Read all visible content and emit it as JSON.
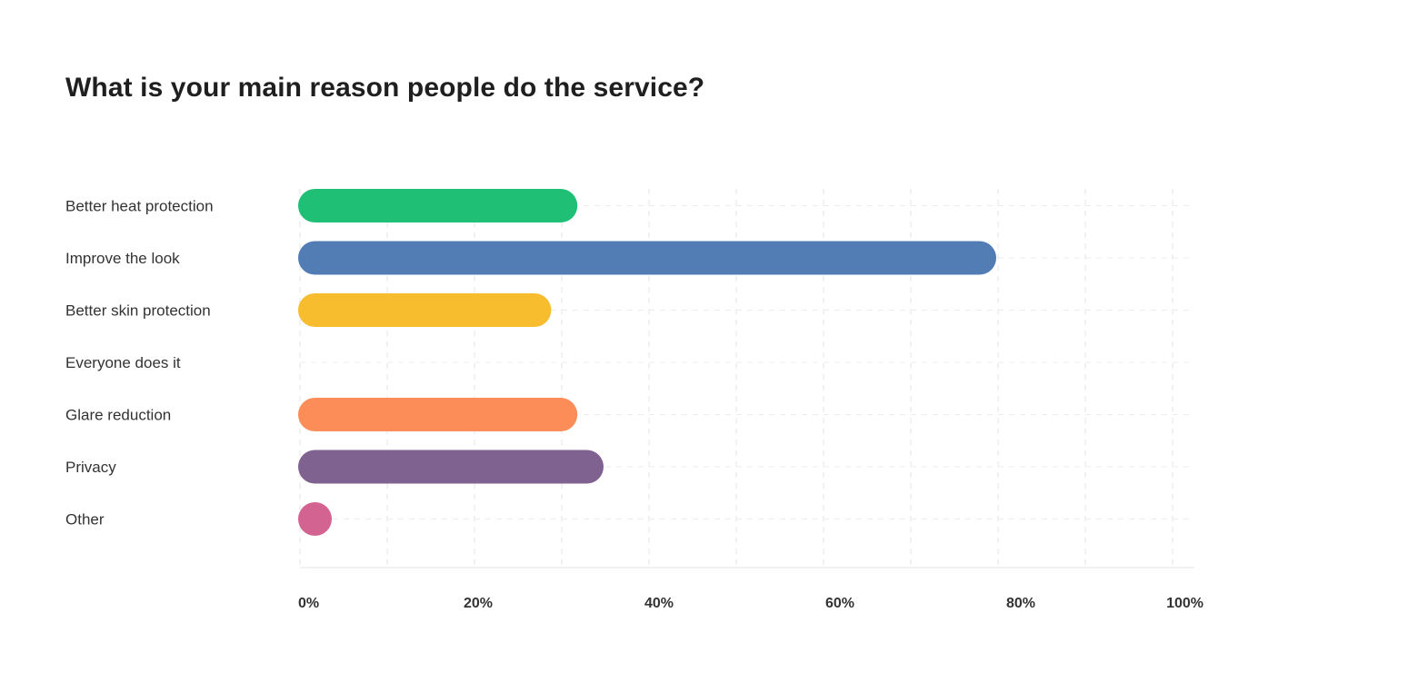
{
  "page": {
    "title": "What is your main reason people do the service?"
  },
  "chart_data": {
    "type": "bar",
    "orientation": "horizontal",
    "title": "What is your main reason people do the service?",
    "xlabel": "",
    "ylabel": "",
    "xlim": [
      0,
      100
    ],
    "x_ticks": [
      "0%",
      "20%",
      "40%",
      "60%",
      "80%",
      "100%"
    ],
    "grid": true,
    "categories": [
      "Better heat protection",
      "Improve the look",
      "Better skin protection",
      "Everyone does it",
      "Glare reduction",
      "Privacy",
      "Other"
    ],
    "values": [
      32,
      80,
      29,
      0,
      32,
      35,
      3
    ],
    "colors": [
      "#20bf76",
      "#527db4",
      "#f7bd2f",
      "#cccccc",
      "#fc8d59",
      "#7f6290",
      "#d36391"
    ]
  }
}
